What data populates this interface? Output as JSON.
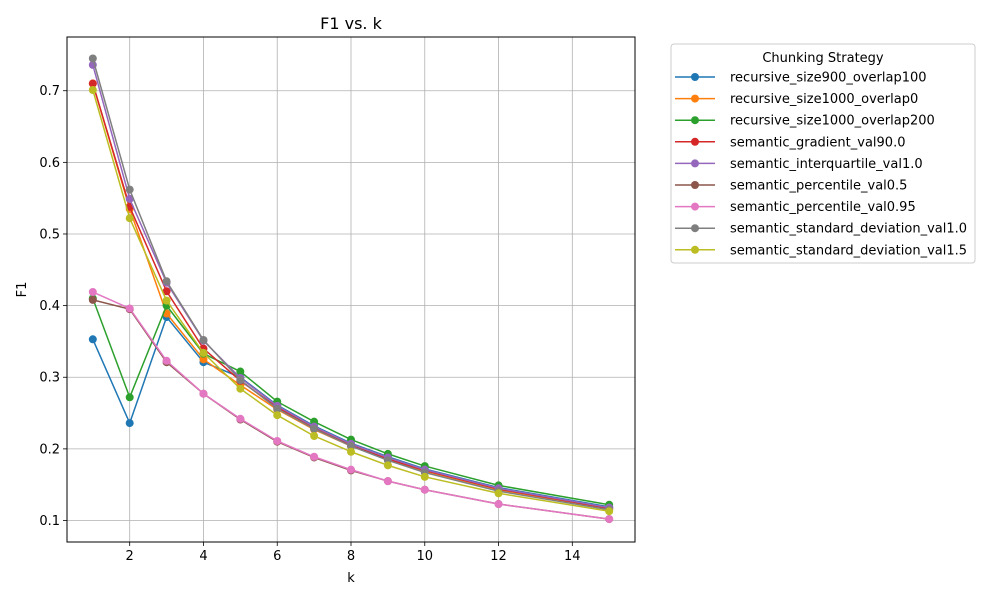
{
  "chart_data": {
    "type": "line",
    "title": "F1 vs. k",
    "xlabel": "k",
    "ylabel": "F1",
    "xlim": [
      0.3,
      15.7
    ],
    "ylim": [
      0.07,
      0.775
    ],
    "x_ticks": [
      2,
      4,
      6,
      8,
      10,
      12,
      14
    ],
    "y_ticks": [
      0.1,
      0.2,
      0.3,
      0.4,
      0.5,
      0.6,
      0.7
    ],
    "grid": true,
    "legend_title": "Chunking Strategy",
    "legend_position": "outside-top-right",
    "x": [
      1,
      2,
      3,
      4,
      5,
      6,
      7,
      8,
      9,
      10,
      12,
      15
    ],
    "series": [
      {
        "name": "recursive_size900_overlap100",
        "color": "#1f77b4",
        "values": [
          0.353,
          0.236,
          0.384,
          0.321,
          0.3,
          0.261,
          0.232,
          0.208,
          0.189,
          0.172,
          0.146,
          0.119
        ]
      },
      {
        "name": "recursive_size1000_overlap0",
        "color": "#ff7f0e",
        "values": [
          0.71,
          0.535,
          0.389,
          0.325,
          0.289,
          0.255,
          0.227,
          0.204,
          0.185,
          0.169,
          0.143,
          0.116
        ]
      },
      {
        "name": "recursive_size1000_overlap200",
        "color": "#2ca02c",
        "values": [
          0.41,
          0.272,
          0.4,
          0.333,
          0.308,
          0.266,
          0.238,
          0.213,
          0.193,
          0.176,
          0.149,
          0.122
        ]
      },
      {
        "name": "semantic_gradient_val90.0",
        "color": "#d62728",
        "values": [
          0.71,
          0.538,
          0.42,
          0.34,
          0.295,
          0.258,
          0.229,
          0.205,
          0.186,
          0.17,
          0.144,
          0.117
        ]
      },
      {
        "name": "semantic_interquartile_val1.0",
        "color": "#9467bd",
        "values": [
          0.736,
          0.549,
          0.432,
          0.351,
          0.299,
          0.26,
          0.231,
          0.207,
          0.188,
          0.171,
          0.145,
          0.118
        ]
      },
      {
        "name": "semantic_percentile_val0.5",
        "color": "#8c564b",
        "values": [
          0.408,
          0.395,
          0.321,
          0.277,
          0.241,
          0.21,
          0.188,
          0.17,
          0.155,
          0.143,
          0.123,
          0.102
        ]
      },
      {
        "name": "semantic_percentile_val0.95",
        "color": "#e377c2",
        "values": [
          0.419,
          0.396,
          0.323,
          0.277,
          0.242,
          0.211,
          0.189,
          0.171,
          0.155,
          0.143,
          0.123,
          0.102
        ]
      },
      {
        "name": "semantic_standard_deviation_val1.0",
        "color": "#7f7f7f",
        "values": [
          0.745,
          0.562,
          0.434,
          0.352,
          0.296,
          0.256,
          0.228,
          0.204,
          0.184,
          0.167,
          0.141,
          0.115
        ]
      },
      {
        "name": "semantic_standard_deviation_val1.5",
        "color": "#bcbd22",
        "values": [
          0.701,
          0.522,
          0.407,
          0.334,
          0.284,
          0.247,
          0.218,
          0.196,
          0.177,
          0.161,
          0.138,
          0.113
        ]
      }
    ]
  }
}
